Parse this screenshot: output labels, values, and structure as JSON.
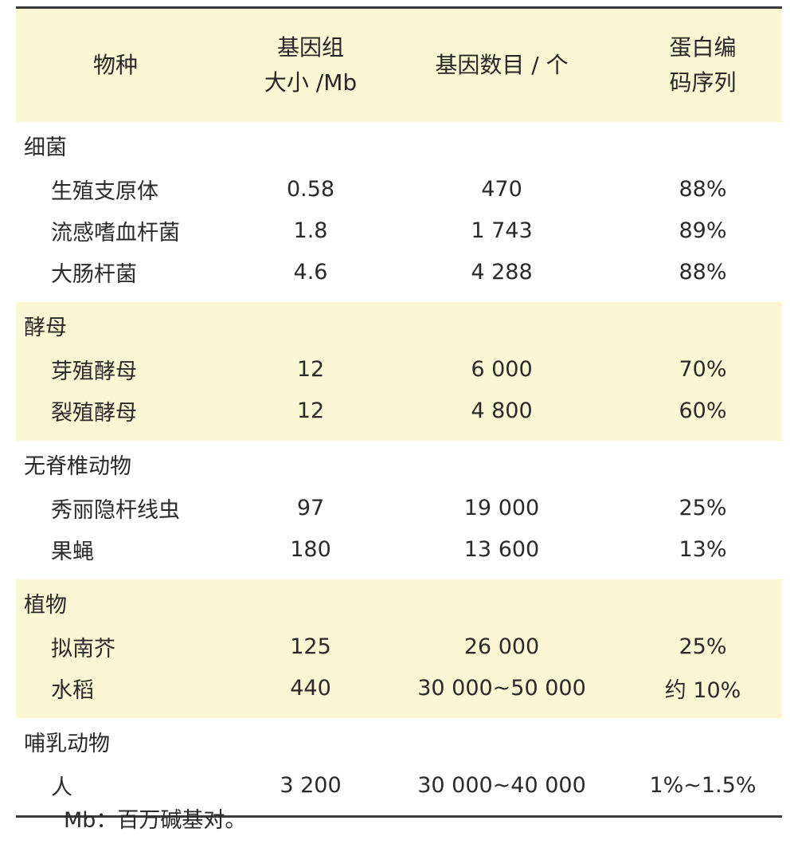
{
  "table": {
    "headers": {
      "species": "物种",
      "genome_size_line1": "基因组",
      "genome_size_line2": "大小 /Mb",
      "gene_count": "基因数目 / 个",
      "protein_coding_line1": "蛋白编",
      "protein_coding_line2": "码序列"
    },
    "groups": [
      {
        "title": "细菌",
        "rows": [
          {
            "species": "生殖支原体",
            "size": "0.58",
            "genes": "470",
            "protein": "88%"
          },
          {
            "species": "流感嗜血杆菌",
            "size": "1.8",
            "genes": "1 743",
            "protein": "89%"
          },
          {
            "species": "大肠杆菌",
            "size": "4.6",
            "genes": "4 288",
            "protein": "88%"
          }
        ]
      },
      {
        "title": "酵母",
        "rows": [
          {
            "species": "芽殖酵母",
            "size": "12",
            "genes": "6 000",
            "protein": "70%"
          },
          {
            "species": "裂殖酵母",
            "size": "12",
            "genes": "4 800",
            "protein": "60%"
          }
        ]
      },
      {
        "title": "无脊椎动物",
        "rows": [
          {
            "species": "秀丽隐杆线虫",
            "size": "97",
            "genes": "19 000",
            "protein": "25%"
          },
          {
            "species": "果蝇",
            "size": "180",
            "genes": "13 600",
            "protein": "13%"
          }
        ]
      },
      {
        "title": "植物",
        "rows": [
          {
            "species": "拟南芥",
            "size": "125",
            "genes": "26 000",
            "protein": "25%"
          },
          {
            "species": "水稻",
            "size": "440",
            "genes": "30 000~50 000",
            "protein": "约 10%"
          }
        ]
      },
      {
        "title": "哺乳动物",
        "rows": [
          {
            "species": "人",
            "size": "3 200",
            "genes": "30 000~40 000",
            "protein": "1%~1.5%"
          }
        ]
      }
    ]
  },
  "footnote": "Mb：百万碱基对。",
  "colors": {
    "shade": "#fbf6d3",
    "rule": "#3a3a3a"
  }
}
